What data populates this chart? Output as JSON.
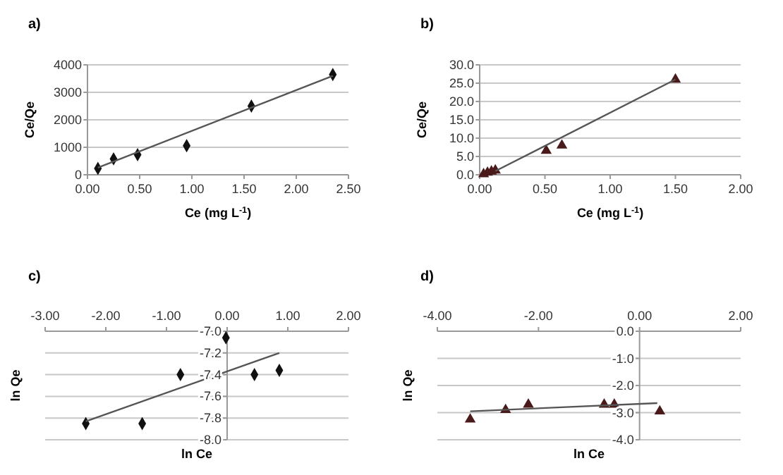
{
  "chart_data": [
    {
      "type": "scatter",
      "title": "a)",
      "xlabel": "Ce (mg L$^{-1}$)",
      "ylabel": "Ce/Qe",
      "xlim": [
        0,
        2.5
      ],
      "xticks": [
        {
          "value": 0,
          "label": "0.00"
        },
        {
          "value": 0.5,
          "label": "0.50"
        },
        {
          "value": 1,
          "label": "1.00"
        },
        {
          "value": 1.5,
          "label": "1.50"
        },
        {
          "value": 2,
          "label": "2.00"
        },
        {
          "value": 2.5,
          "label": "2.50"
        }
      ],
      "ylim": [
        0,
        4000
      ],
      "yticks": [
        0,
        1000,
        2000,
        3000,
        4000
      ],
      "grid": "y",
      "series": [
        {
          "type": "scatter",
          "marker": "diamond",
          "color": "#111111",
          "x": [
            0.1,
            0.25,
            0.48,
            0.95,
            1.57,
            2.35
          ],
          "values": [
            230,
            580,
            730,
            1060,
            2500,
            3650
          ]
        },
        {
          "type": "line",
          "marker": "none",
          "color": "#555555",
          "x": [
            0.1,
            2.35
          ],
          "values": [
            260,
            3600
          ]
        }
      ]
    },
    {
      "type": "scatter",
      "title": "b)",
      "xlabel": "Ce (mg L$^{-1}$)",
      "ylabel": "Ce/Qe",
      "xlim": [
        0,
        2
      ],
      "xticks": [
        {
          "value": 0,
          "label": "0.00"
        },
        {
          "value": 0.5,
          "label": "0.50"
        },
        {
          "value": 1,
          "label": "1.00"
        },
        {
          "value": 1.5,
          "label": "1.50"
        },
        {
          "value": 2,
          "label": "2.00"
        }
      ],
      "ylim": [
        0,
        30
      ],
      "yticks": [
        {
          "value": 0,
          "label": "0.0"
        },
        {
          "value": 5,
          "label": "5.0"
        },
        {
          "value": 10,
          "label": "10.0"
        },
        {
          "value": 15,
          "label": "15.0"
        },
        {
          "value": 20,
          "label": "20.0"
        },
        {
          "value": 25,
          "label": "25.0"
        },
        {
          "value": 30,
          "label": "30.0"
        }
      ],
      "grid": "y",
      "series": [
        {
          "type": "scatter",
          "marker": "triangle",
          "color": "#4a1a1a",
          "x": [
            0.03,
            0.06,
            0.09,
            0.12,
            0.51,
            0.63,
            1.5
          ],
          "values": [
            0.2,
            0.6,
            0.9,
            1.2,
            6.6,
            8.0,
            26.0
          ]
        },
        {
          "type": "line",
          "marker": "none",
          "color": "#555555",
          "x": [
            0.12,
            1.5
          ],
          "values": [
            1.0,
            26.0
          ]
        }
      ]
    },
    {
      "type": "scatter",
      "title": "c)",
      "xlabel": "ln Ce",
      "ylabel": "ln Qe",
      "xlim": [
        -3,
        2
      ],
      "xticks": [
        {
          "value": -3,
          "label": "-3.00"
        },
        {
          "value": -2,
          "label": "-2.00"
        },
        {
          "value": -1,
          "label": "-1.00"
        },
        {
          "value": 0,
          "label": "0.00"
        },
        {
          "value": 1,
          "label": "1.00"
        },
        {
          "value": 2,
          "label": "2.00"
        }
      ],
      "ylim": [
        -8,
        -7
      ],
      "yticks": [
        {
          "value": -7,
          "label": "-7.0"
        },
        -7.2,
        -7.4,
        -7.6,
        -7.8,
        {
          "value": -8,
          "label": "-8.0"
        }
      ],
      "grid": "y",
      "series": [
        {
          "type": "scatter",
          "marker": "diamond",
          "color": "#111111",
          "x": [
            -2.33,
            -1.4,
            -0.77,
            -0.02,
            0.45,
            0.86
          ],
          "values": [
            -7.85,
            -7.85,
            -7.4,
            -7.06,
            -7.4,
            -7.36
          ]
        },
        {
          "type": "line",
          "marker": "none",
          "color": "#555555",
          "x": [
            -2.33,
            0.86
          ],
          "values": [
            -7.83,
            -7.2
          ]
        }
      ]
    },
    {
      "type": "scatter",
      "title": "d)",
      "xlabel": "ln Ce",
      "ylabel": "ln Qe",
      "xlim": [
        -4,
        2
      ],
      "xticks": [
        {
          "value": -4,
          "label": "-4.00"
        },
        {
          "value": -2,
          "label": "-2.00"
        },
        {
          "value": 0,
          "label": "0.00"
        },
        {
          "value": 2,
          "label": "2.00"
        }
      ],
      "ylim": [
        -4,
        0
      ],
      "yticks": [
        {
          "value": 0,
          "label": "0.0"
        },
        {
          "value": -1,
          "label": "-1.0"
        },
        {
          "value": -2,
          "label": "-2.0"
        },
        {
          "value": -3,
          "label": "-3.0"
        },
        {
          "value": -4,
          "label": "-4.0"
        }
      ],
      "grid": "y",
      "series": [
        {
          "type": "scatter",
          "marker": "triangle",
          "color": "#4a1a1a",
          "x": [
            -3.35,
            -2.65,
            -2.2,
            -0.7,
            -0.5,
            0.4
          ],
          "values": [
            -3.25,
            -2.9,
            -2.7,
            -2.7,
            -2.7,
            -2.95
          ]
        },
        {
          "type": "line",
          "marker": "none",
          "color": "#555555",
          "x": [
            -3.35,
            0.35
          ],
          "values": [
            -2.95,
            -2.65
          ]
        }
      ]
    }
  ]
}
